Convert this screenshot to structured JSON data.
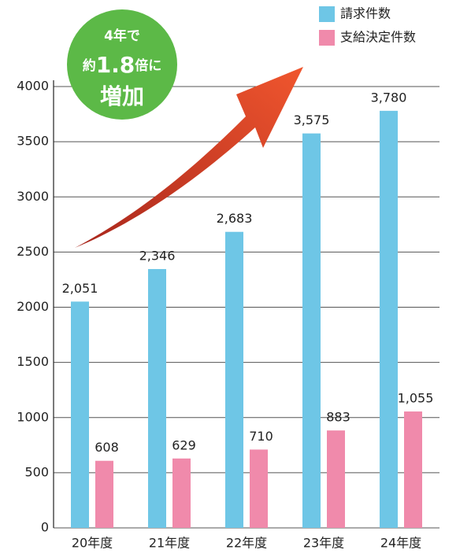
{
  "chart_data": {
    "type": "bar",
    "categories": [
      "20年度",
      "21年度",
      "22年度",
      "23年度",
      "24年度"
    ],
    "series": [
      {
        "name": "請求件数",
        "color": "#6ec6e6",
        "values": [
          2051,
          2346,
          2683,
          3575,
          3780
        ],
        "value_labels": [
          "2,051",
          "2,346",
          "2,683",
          "3,575",
          "3,780"
        ]
      },
      {
        "name": "支給決定件数",
        "color": "#f08aab",
        "values": [
          608,
          629,
          710,
          883,
          1055
        ],
        "value_labels": [
          "608",
          "629",
          "710",
          "883",
          "1,055"
        ]
      }
    ],
    "ylim": [
      0,
      4000
    ],
    "yticks": [
      0,
      500,
      1000,
      1500,
      2000,
      2500,
      3000,
      3500,
      4000
    ],
    "grid": true,
    "annotation": [
      "4年で",
      "約",
      "1.8",
      "倍に",
      "増加"
    ]
  }
}
